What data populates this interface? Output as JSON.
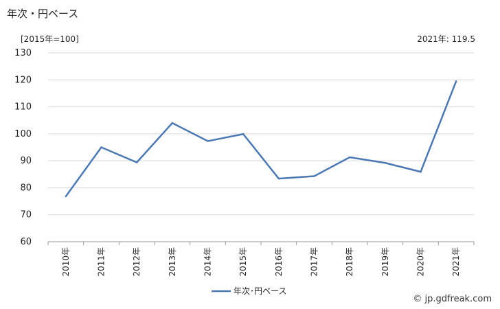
{
  "chart_data": {
    "type": "line",
    "title": "年次・円ベース",
    "unit_note": "[2015年=100]",
    "latest_note": "2021年: 119.5",
    "categories": [
      "2010年",
      "2011年",
      "2012年",
      "2013年",
      "2014年",
      "2015年",
      "2016年",
      "2017年",
      "2018年",
      "2019年",
      "2020年",
      "2021年"
    ],
    "series": [
      {
        "name": "年次･円ベース",
        "values": [
          76.8,
          95.0,
          89.4,
          104.0,
          97.3,
          99.9,
          83.4,
          84.3,
          91.3,
          89.2,
          85.9,
          119.5
        ],
        "color": "#4a78b4"
      }
    ],
    "y_ticks": [
      "60",
      "70",
      "80",
      "90",
      "100",
      "110",
      "120",
      "130"
    ],
    "ylim": [
      60,
      130
    ],
    "grid": true,
    "legend": "bottom-center"
  },
  "credit": "© jp.gdfreak.com"
}
